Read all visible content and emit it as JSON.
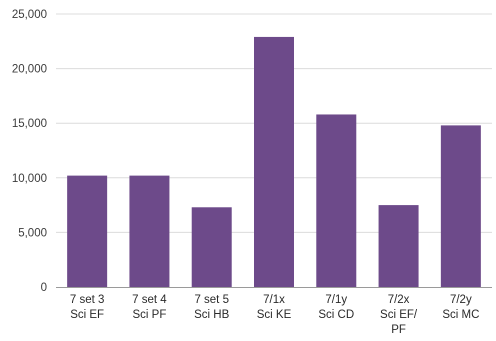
{
  "chart_data": {
    "type": "bar",
    "categories": [
      [
        "7 set 3",
        "Sci EF"
      ],
      [
        "7 set 4",
        "Sci PF"
      ],
      [
        "7 set 5",
        "Sci HB"
      ],
      [
        "7/1x",
        "Sci KE"
      ],
      [
        "7/1y",
        "Sci CD"
      ],
      [
        "7/2x",
        "Sci EF/",
        "PF"
      ],
      [
        "7/2y",
        "Sci MC"
      ]
    ],
    "values": [
      10200,
      10200,
      7300,
      22900,
      15800,
      7500,
      14800
    ],
    "y_ticks": [
      "0",
      "5,000",
      "10,000",
      "15,000",
      "20,000",
      "25,000"
    ],
    "ylim": [
      0,
      25000
    ],
    "grid": true,
    "bar_color": "#6d4a8a",
    "title": "",
    "xlabel": "",
    "ylabel": ""
  }
}
